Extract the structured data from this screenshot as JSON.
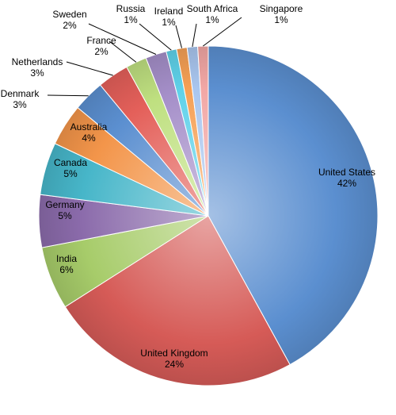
{
  "chart_data": {
    "type": "pie",
    "title": "",
    "slices": [
      {
        "label": "United States",
        "value": 42,
        "value_label": "42%",
        "color": "#5b8fd0",
        "label_placement": "inside"
      },
      {
        "label": "United Kingdom",
        "value": 24,
        "value_label": "24%",
        "color": "#d65b57",
        "label_placement": "inside"
      },
      {
        "label": "India",
        "value": 6,
        "value_label": "6%",
        "color": "#a7cc6a",
        "label_placement": "inside"
      },
      {
        "label": "Germany",
        "value": 5,
        "value_label": "5%",
        "color": "#8b6bab",
        "label_placement": "inside"
      },
      {
        "label": "Canada",
        "value": 5,
        "value_label": "5%",
        "color": "#47b6c9",
        "label_placement": "inside"
      },
      {
        "label": "Australia",
        "value": 4,
        "value_label": "4%",
        "color": "#f3954a",
        "label_placement": "inside"
      },
      {
        "label": "Denmark",
        "value": 3,
        "value_label": "3%",
        "color": "#5b8fd0",
        "label_placement": "outside"
      },
      {
        "label": "Netherlands",
        "value": 3,
        "value_label": "3%",
        "color": "#e4605a",
        "label_placement": "outside"
      },
      {
        "label": "France",
        "value": 2,
        "value_label": "2%",
        "color": "#bfe080",
        "label_placement": "outside"
      },
      {
        "label": "Sweden",
        "value": 2,
        "value_label": "2%",
        "color": "#a58fc9",
        "label_placement": "outside"
      },
      {
        "label": "Russia",
        "value": 1,
        "value_label": "1%",
        "color": "#5fd2ea",
        "label_placement": "outside"
      },
      {
        "label": "Ireland",
        "value": 1,
        "value_label": "1%",
        "color": "#f6a055",
        "label_placement": "outside"
      },
      {
        "label": "South Africa",
        "value": 1,
        "value_label": "1%",
        "color": "#a9c6ef",
        "label_placement": "outside"
      },
      {
        "label": "Singapore",
        "value": 1,
        "value_label": "1%",
        "color": "#f2a7a5",
        "label_placement": "outside"
      }
    ],
    "start": "top",
    "direction": "clockwise",
    "legend": "none"
  }
}
